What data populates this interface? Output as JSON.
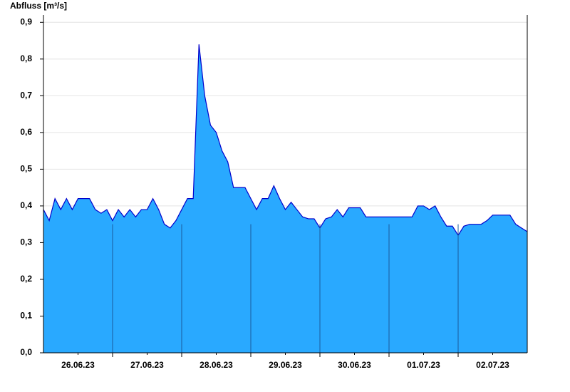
{
  "chart_data": {
    "type": "area",
    "title": "Abfluss [m³/s]",
    "x": [
      0,
      2,
      4,
      6,
      8,
      10,
      12,
      14,
      16,
      18,
      20,
      22,
      24,
      26,
      28,
      30,
      32,
      34,
      36,
      38,
      40,
      42,
      44,
      46,
      48,
      50,
      52,
      54,
      56,
      58,
      60,
      62,
      64,
      66,
      68,
      70,
      72,
      74,
      76,
      78,
      80,
      82,
      84,
      86,
      88,
      90,
      92,
      94,
      96,
      98,
      100,
      102,
      104,
      106,
      108,
      110,
      112,
      114,
      116,
      118,
      120,
      122,
      124,
      126,
      128,
      130,
      132,
      134,
      136,
      138,
      140,
      142,
      144,
      146,
      148,
      150,
      152,
      154,
      156,
      158,
      160,
      162,
      164,
      166,
      168
    ],
    "values": [
      0.39,
      0.36,
      0.42,
      0.39,
      0.42,
      0.39,
      0.42,
      0.42,
      0.42,
      0.39,
      0.38,
      0.39,
      0.36,
      0.39,
      0.37,
      0.39,
      0.37,
      0.39,
      0.39,
      0.42,
      0.39,
      0.35,
      0.34,
      0.36,
      0.39,
      0.42,
      0.42,
      0.84,
      0.7,
      0.62,
      0.6,
      0.55,
      0.52,
      0.45,
      0.45,
      0.45,
      0.42,
      0.39,
      0.42,
      0.42,
      0.455,
      0.42,
      0.39,
      0.41,
      0.39,
      0.37,
      0.365,
      0.365,
      0.34,
      0.365,
      0.37,
      0.39,
      0.37,
      0.395,
      0.395,
      0.395,
      0.37,
      0.37,
      0.37,
      0.37,
      0.37,
      0.37,
      0.37,
      0.37,
      0.37,
      0.4,
      0.4,
      0.39,
      0.4,
      0.37,
      0.345,
      0.345,
      0.32,
      0.345,
      0.35,
      0.35,
      0.35,
      0.36,
      0.375,
      0.375,
      0.375,
      0.375,
      0.35,
      0.34,
      0.33
    ],
    "fill": "#29a9ff",
    "color": "#0000cc",
    "xlim": [
      0,
      168
    ],
    "xticks": [
      {
        "value": 12,
        "label": "26.06.23"
      },
      {
        "value": 36,
        "label": "27.06.23"
      },
      {
        "value": 60,
        "label": "28.06.23"
      },
      {
        "value": 84,
        "label": "29.06.23"
      },
      {
        "value": 108,
        "label": "30.06.23"
      },
      {
        "value": 132,
        "label": "01.07.23"
      },
      {
        "value": 156,
        "label": "02.07.23"
      }
    ],
    "xgrid": [
      24,
      48,
      72,
      96,
      120,
      144
    ],
    "ylim": [
      0,
      0.92
    ],
    "yticks": [
      {
        "value": 0,
        "label": "0,0"
      },
      {
        "value": 0.1,
        "label": "0,1"
      },
      {
        "value": 0.2,
        "label": "0,2"
      },
      {
        "value": 0.3,
        "label": "0,3"
      },
      {
        "value": 0.4,
        "label": "0,4"
      },
      {
        "value": 0.5,
        "label": "0,5"
      },
      {
        "value": 0.6,
        "label": "0,6"
      },
      {
        "value": 0.7,
        "label": "0,7"
      },
      {
        "value": 0.8,
        "label": "0,8"
      },
      {
        "value": 0.9,
        "label": "0,9"
      }
    ],
    "grid": true
  }
}
